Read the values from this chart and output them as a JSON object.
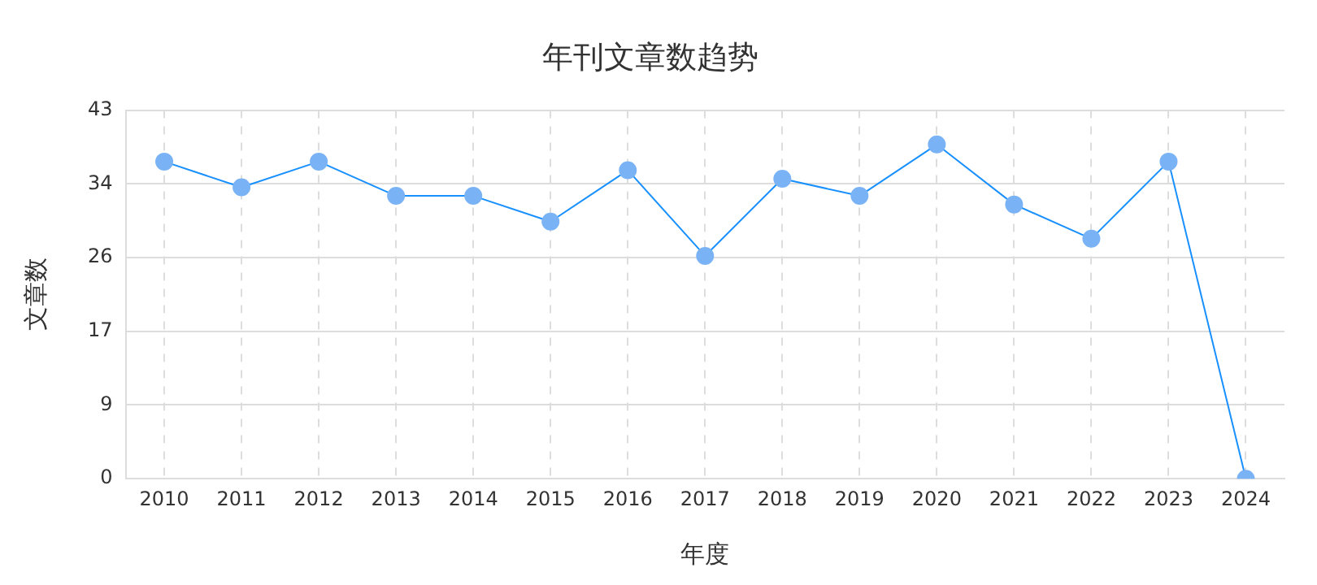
{
  "chart_data": {
    "type": "line",
    "title": "年刊文章数趋势",
    "xlabel": "年度",
    "ylabel": "文章数",
    "categories": [
      "2010",
      "2011",
      "2012",
      "2013",
      "2014",
      "2015",
      "2016",
      "2017",
      "2018",
      "2019",
      "2020",
      "2021",
      "2022",
      "2023",
      "2024"
    ],
    "series": [
      {
        "color": "#1890ff",
        "values": [
          37,
          34,
          37,
          33,
          33,
          30,
          36,
          26,
          35,
          33,
          39,
          32,
          28,
          37,
          0
        ]
      }
    ],
    "ylim": [
      0,
      43
    ],
    "yticks": [
      0,
      {
        "value": 8.6,
        "label": "9"
      },
      {
        "value": 17.2,
        "label": "17"
      },
      {
        "value": 25.8,
        "label": "26"
      },
      {
        "value": 34.4,
        "label": "34"
      },
      43
    ],
    "grid": true,
    "marker": "circle",
    "line_style": "solid",
    "legend": false
  }
}
